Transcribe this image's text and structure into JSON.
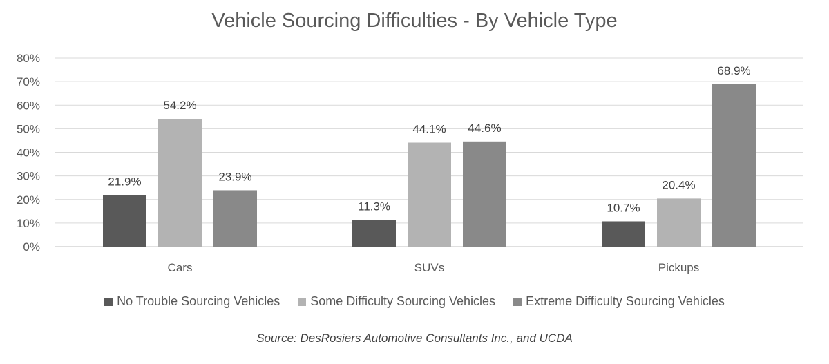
{
  "chart_data": {
    "type": "bar",
    "title": "Vehicle Sourcing Difficulties - By Vehicle Type",
    "categories": [
      "Cars",
      "SUVs",
      "Pickups"
    ],
    "series": [
      {
        "name": "No Trouble Sourcing Vehicles",
        "values": [
          21.9,
          11.3,
          10.7
        ],
        "color": "#595959"
      },
      {
        "name": "Some Difficulty Sourcing Vehicles",
        "values": [
          54.2,
          44.1,
          20.4
        ],
        "color": "#b3b3b3"
      },
      {
        "name": "Extreme Difficulty Sourcing Vehicles",
        "values": [
          23.9,
          44.6,
          68.9
        ],
        "color": "#898989"
      }
    ],
    "value_format": "percent_1dp",
    "ylim": [
      0,
      80
    ],
    "yticks": [
      "0%",
      "10%",
      "20%",
      "30%",
      "40%",
      "50%",
      "60%",
      "70%",
      "80%"
    ],
    "xlabel": "",
    "ylabel": "",
    "grid": true,
    "legend_position": "bottom",
    "source": "Source: DesRosiers Automotive Consultants Inc., and UCDA"
  }
}
